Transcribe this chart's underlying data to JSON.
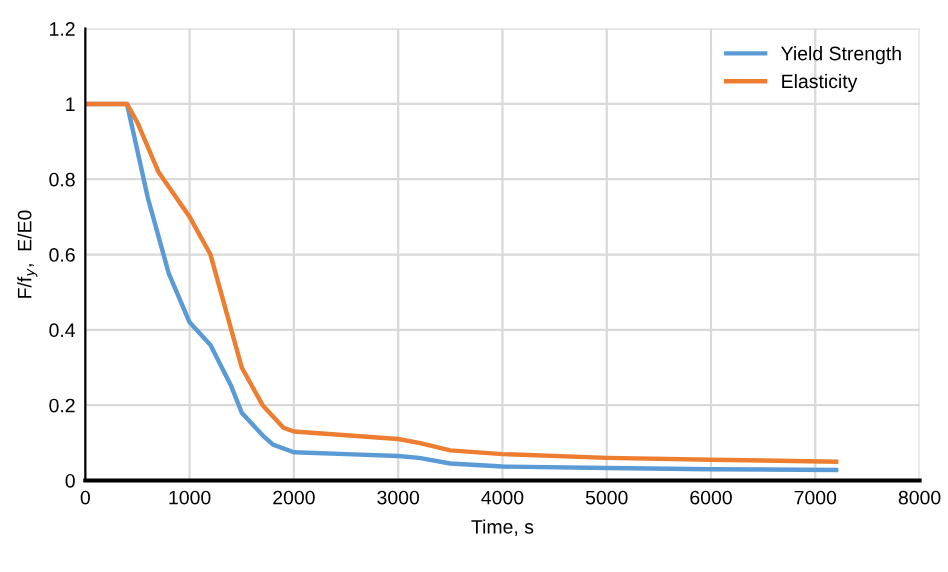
{
  "chart_data": {
    "type": "line",
    "xlabel": "Time, s",
    "ylabel": "F/f$_{y}$,  E/E0",
    "series": [
      {
        "name": "Yield Strength",
        "color": "#5b9bd5",
        "x": [
          0,
          400,
          600,
          800,
          1000,
          1200,
          1400,
          1500,
          1700,
          1800,
          2000,
          2500,
          3000,
          3200,
          3500,
          4000,
          5000,
          6000,
          7200
        ],
        "values": [
          1,
          1,
          0.75,
          0.55,
          0.42,
          0.36,
          0.25,
          0.18,
          0.12,
          0.095,
          0.075,
          0.07,
          0.065,
          0.06,
          0.045,
          0.037,
          0.033,
          0.03,
          0.028
        ]
      },
      {
        "name": "Elasticity",
        "color": "#ed7d31",
        "x": [
          0,
          400,
          500,
          700,
          1000,
          1200,
          1400,
          1500,
          1700,
          1900,
          2000,
          2500,
          3000,
          3200,
          3500,
          4000,
          5000,
          6000,
          7200
        ],
        "values": [
          1,
          1,
          0.95,
          0.82,
          0.7,
          0.6,
          0.4,
          0.3,
          0.2,
          0.14,
          0.13,
          0.12,
          0.11,
          0.1,
          0.08,
          0.07,
          0.06,
          0.055,
          0.05
        ]
      }
    ],
    "xlim": [
      0,
      8000
    ],
    "xticks": [
      0,
      1000,
      2000,
      3000,
      4000,
      5000,
      6000,
      7000,
      8000
    ],
    "ylim": [
      0,
      1.2
    ],
    "yticks": [
      0,
      0.2,
      0.4,
      0.6,
      0.8,
      1,
      1.2
    ],
    "grid": true,
    "legend": "top right",
    "marker": "none",
    "line_style": "solid"
  }
}
